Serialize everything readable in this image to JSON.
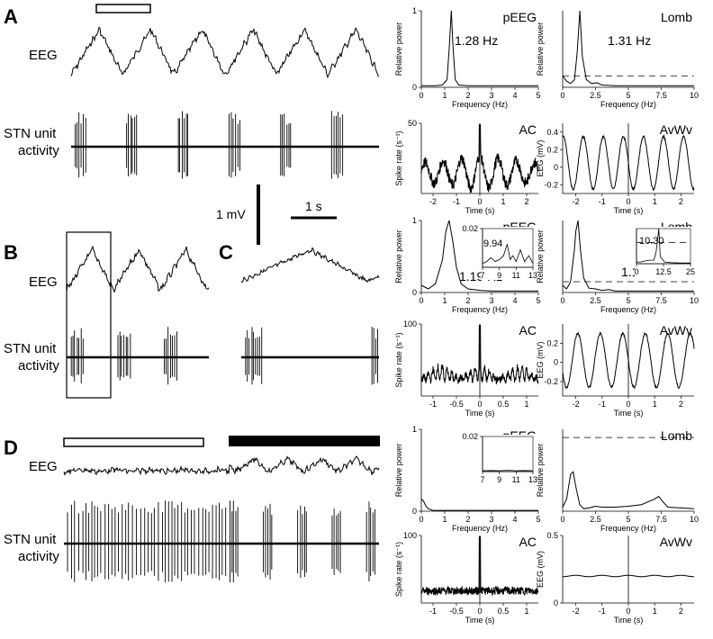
{
  "left": {
    "panel_labels": [
      "A",
      "B",
      "C",
      "D"
    ],
    "eeg_label": "EEG",
    "stn_label_line1": "STN unit",
    "stn_label_line2": "activity",
    "scale_mv": "1 mV",
    "scale_s": "1 s"
  },
  "colors": {
    "trace": "#000000",
    "background": "#ffffff"
  },
  "chart_data": [
    {
      "type": "line",
      "name": "pEEG",
      "title": "pEEG",
      "annotation": "1.28 Hz",
      "xlabel": "Frequency (Hz)",
      "ylabel": "Relative power",
      "xlim": [
        0,
        5
      ],
      "ylim": [
        0,
        1
      ],
      "xticks": [
        "0",
        "1",
        "2",
        "3",
        "4",
        "5"
      ],
      "yticks": [
        "0",
        "1"
      ],
      "x": [
        0,
        0.3,
        0.6,
        0.9,
        1.1,
        1.2,
        1.28,
        1.35,
        1.45,
        1.6,
        2,
        2.5,
        3,
        3.5,
        4,
        4.5,
        5
      ],
      "y": [
        0.02,
        0.02,
        0.02,
        0.03,
        0.1,
        0.55,
        1.0,
        0.55,
        0.1,
        0.03,
        0.02,
        0.02,
        0.02,
        0.02,
        0.02,
        0.02,
        0.02
      ]
    },
    {
      "type": "line",
      "name": "Lomb",
      "title": "Lomb",
      "annotation": "1.31 Hz",
      "xlabel": "Frequency (Hz)",
      "ylabel": "Relative power",
      "xlim": [
        0,
        10
      ],
      "ylim": [
        0,
        1
      ],
      "xticks": [
        "0",
        "2.5",
        "5",
        "7.5",
        "10"
      ],
      "significance_level": 0.15,
      "x": [
        0,
        0.3,
        0.6,
        0.9,
        1.1,
        1.31,
        1.5,
        1.8,
        2.2,
        2.6,
        3,
        4,
        5,
        6,
        7,
        8,
        9,
        10
      ],
      "y": [
        0.15,
        0.08,
        0.05,
        0.1,
        0.45,
        1.0,
        0.4,
        0.1,
        0.05,
        0.06,
        0.03,
        0.02,
        0.02,
        0.02,
        0.02,
        0.02,
        0.02,
        0.02
      ]
    },
    {
      "type": "line",
      "name": "AC",
      "title": "AC",
      "ylabel": "Spike rate (s⁻¹)",
      "xlabel": "Time (s)",
      "xlim": [
        -2.5,
        2.5
      ],
      "ylim": [
        0,
        50
      ],
      "xticks": [
        "-2",
        "-1",
        "0",
        "1",
        "2"
      ],
      "yticks": [
        "50"
      ],
      "model": {
        "offset": 15,
        "amp": 12,
        "freq": 1.28,
        "envelope": 0.6,
        "noise": 4
      }
    },
    {
      "type": "line",
      "name": "AvWv",
      "title": "AvWv",
      "ylabel": "EEG (mV)",
      "xlabel": "Time (s)",
      "xlim": [
        -2.5,
        2.5
      ],
      "ylim": [
        -0.3,
        0.5
      ],
      "xticks": [
        "-2",
        "-1",
        "0",
        "1",
        "2"
      ],
      "yticks": [
        "-0.2",
        "0",
        "0.2",
        "0.4"
      ],
      "model": {
        "offset": 0.05,
        "amp": 0.3,
        "freq": 1.31,
        "phase": 1.57
      }
    },
    {
      "type": "line",
      "name": "pEEG",
      "title": "pEEG",
      "annotation": "1.19 Hz",
      "xlabel": "Frequency (Hz)",
      "ylabel": "Relative power",
      "xlim": [
        0,
        5
      ],
      "ylim": [
        0,
        1
      ],
      "xticks": [
        "0",
        "1",
        "2",
        "3",
        "4",
        "5"
      ],
      "yticks": [
        "0",
        "1"
      ],
      "x": [
        0,
        0.3,
        0.6,
        0.9,
        1.05,
        1.19,
        1.35,
        1.5,
        1.7,
        2,
        2.5,
        3,
        3.5,
        4,
        4.5,
        5
      ],
      "y": [
        0.1,
        0.05,
        0.12,
        0.45,
        0.85,
        1.0,
        0.7,
        0.35,
        0.12,
        0.05,
        0.03,
        0.02,
        0.02,
        0.02,
        0.02,
        0.02
      ],
      "inset": {
        "label": "9.94",
        "xlim": [
          7,
          13
        ],
        "ylim": [
          0,
          0.02
        ],
        "xticks": [
          "7",
          "9",
          "11",
          "13"
        ],
        "yticks": [
          "0.02"
        ],
        "x": [
          7,
          7.5,
          8,
          8.5,
          9,
          9.5,
          9.94,
          10.3,
          10.6,
          11,
          11.5,
          12,
          12.5,
          13
        ],
        "y": [
          0.002,
          0.003,
          0.005,
          0.003,
          0.004,
          0.006,
          0.012,
          0.004,
          0.006,
          0.003,
          0.009,
          0.003,
          0.006,
          0.002
        ]
      }
    },
    {
      "type": "line",
      "name": "Lomb",
      "title": "Lomb",
      "annotation": "1.17 Hz",
      "xlabel": "Frequency (Hz)",
      "ylabel": "Relative power",
      "xlim": [
        0,
        10
      ],
      "ylim": [
        0,
        1
      ],
      "xticks": [
        "0",
        "2.5",
        "5",
        "7.5",
        "10"
      ],
      "significance_level": 0.15,
      "x": [
        0,
        0.3,
        0.6,
        0.9,
        1.0,
        1.17,
        1.35,
        1.6,
        2,
        2.5,
        3,
        3.5,
        4,
        5,
        6,
        7,
        8,
        9,
        10
      ],
      "y": [
        0.1,
        0.05,
        0.15,
        0.6,
        0.85,
        1.0,
        0.6,
        0.2,
        0.06,
        0.05,
        0.03,
        0.04,
        0.02,
        0.02,
        0.02,
        0.02,
        0.02,
        0.02,
        0.02
      ],
      "inset": {
        "label": "10.30",
        "xlim": [
          0,
          25
        ],
        "ylim": [
          0,
          1
        ],
        "xticks": [
          "0",
          "12.5",
          "25"
        ],
        "significance_level": 0.6,
        "x": [
          0,
          2,
          4,
          6,
          8,
          9,
          10,
          10.3,
          10.6,
          11,
          13,
          16,
          20,
          25
        ],
        "y": [
          0.05,
          0.05,
          0.08,
          0.1,
          0.1,
          0.3,
          0.8,
          1.0,
          0.7,
          0.2,
          0.05,
          0.03,
          0.02,
          0.02
        ]
      }
    },
    {
      "type": "line",
      "name": "AC",
      "title": "AC",
      "ylabel": "Spike rate (s⁻¹)",
      "xlabel": "Time (s)",
      "xlim": [
        -1.25,
        1.25
      ],
      "ylim": [
        0,
        100
      ],
      "xticks": [
        "-1",
        "-0.5",
        "0",
        "0.5",
        "1"
      ],
      "yticks": [
        "100"
      ],
      "model": {
        "offset": 22,
        "amp": 20,
        "freq": 10,
        "freq2": 1.19,
        "noise": 5
      }
    },
    {
      "type": "line",
      "name": "AvWv",
      "title": "AvWv",
      "ylabel": "EEG (mV)",
      "xlabel": "Time (s)",
      "xlim": [
        -2.5,
        2.5
      ],
      "ylim": [
        -0.35,
        0.4
      ],
      "xticks": [
        "-2",
        "-1",
        "0",
        "1",
        "2"
      ],
      "yticks": [
        "-0.2",
        "0",
        "0.2"
      ],
      "model": {
        "offset": 0.02,
        "amp": 0.28,
        "freq": 1.17,
        "phase": 1.57
      }
    },
    {
      "type": "line",
      "name": "pEEG",
      "title": "pEEG",
      "xlabel": "Frequency (Hz)",
      "ylabel": "Relative power",
      "xlim": [
        0,
        5
      ],
      "ylim": [
        0,
        1
      ],
      "xticks": [
        "0",
        "1",
        "2",
        "3",
        "4",
        "5"
      ],
      "yticks": [
        "0",
        "1"
      ],
      "x": [
        0,
        0.1,
        0.2,
        0.3,
        0.5,
        1,
        2,
        3,
        4,
        5
      ],
      "y": [
        0.15,
        0.12,
        0.06,
        0.03,
        0.01,
        0.01,
        0.01,
        0.01,
        0.01,
        0.01
      ],
      "inset": {
        "xlim": [
          7,
          13
        ],
        "ylim": [
          0,
          0.02
        ],
        "xticks": [
          "7",
          "9",
          "11",
          "13"
        ],
        "yticks": [
          "0.02"
        ],
        "x": [
          7,
          8,
          9,
          10,
          11,
          12,
          13
        ],
        "y": [
          0.0005,
          0.0006,
          0.0005,
          0.0007,
          0.0005,
          0.0006,
          0.0005
        ]
      }
    },
    {
      "type": "line",
      "name": "Lomb",
      "title": "Lomb",
      "xlabel": "Frequency (Hz)",
      "ylabel": "Relative power",
      "xlim": [
        0,
        10
      ],
      "ylim": [
        0,
        1
      ],
      "xticks": [
        "0",
        "2.5",
        "5",
        "7.5",
        "10"
      ],
      "significance_level": 0.9,
      "x": [
        0,
        0.3,
        0.6,
        0.8,
        1.0,
        1.3,
        1.6,
        2,
        2.5,
        3,
        4,
        5,
        6,
        7,
        7.3,
        7.6,
        8,
        9,
        10
      ],
      "y": [
        0.05,
        0.15,
        0.45,
        0.48,
        0.3,
        0.08,
        0.03,
        0.04,
        0.06,
        0.05,
        0.05,
        0.06,
        0.08,
        0.15,
        0.18,
        0.12,
        0.05,
        0.04,
        0.03
      ]
    },
    {
      "type": "line",
      "name": "AC",
      "title": "AC",
      "ylabel": "Spike rate (s⁻¹)",
      "xlabel": "Time (s)",
      "xlim": [
        -1.25,
        1.25
      ],
      "ylim": [
        0,
        100
      ],
      "xticks": [
        "-1",
        "-0.5",
        "0",
        "0.5",
        "1"
      ],
      "yticks": [
        "100"
      ],
      "model": {
        "offset": 18,
        "amp": 0,
        "freq": 0,
        "noise": 6
      }
    },
    {
      "type": "line",
      "name": "AvWv",
      "title": "AvWv",
      "ylabel": "EEG (mV)",
      "xlabel": "Time (s)",
      "xlim": [
        -2.5,
        2.5
      ],
      "ylim": [
        0,
        0.5
      ],
      "xticks": [
        "-2",
        "-1",
        "0",
        "1",
        "2"
      ],
      "yticks": [
        "0",
        "0.5"
      ],
      "model": {
        "offset": 0.2,
        "amp": 0.005,
        "freq": 1,
        "phase": 0
      }
    }
  ]
}
